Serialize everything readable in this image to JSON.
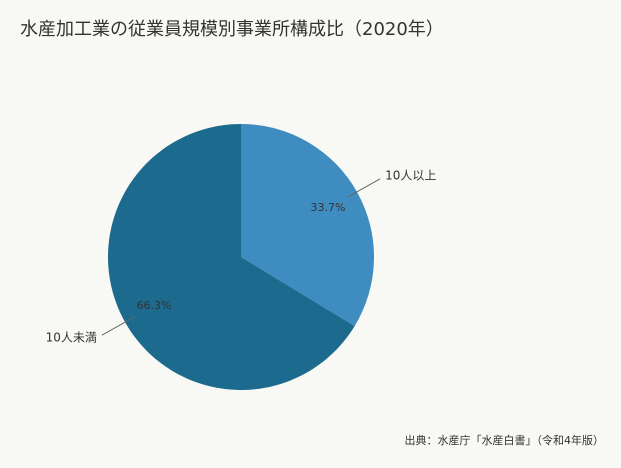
{
  "chart_data": {
    "type": "pie",
    "title": "水産加工業の従業員規模別事業所構成比（2020年）",
    "categories": [
      "10人以上",
      "10人未満"
    ],
    "values": [
      33.7,
      66.3
    ],
    "value_labels": [
      "33.7%",
      "66.3%"
    ],
    "colors": [
      "#3f8cc0",
      "#1d6a8f"
    ],
    "source": "出典：水産庁「水産白書」（令和4年版）"
  }
}
